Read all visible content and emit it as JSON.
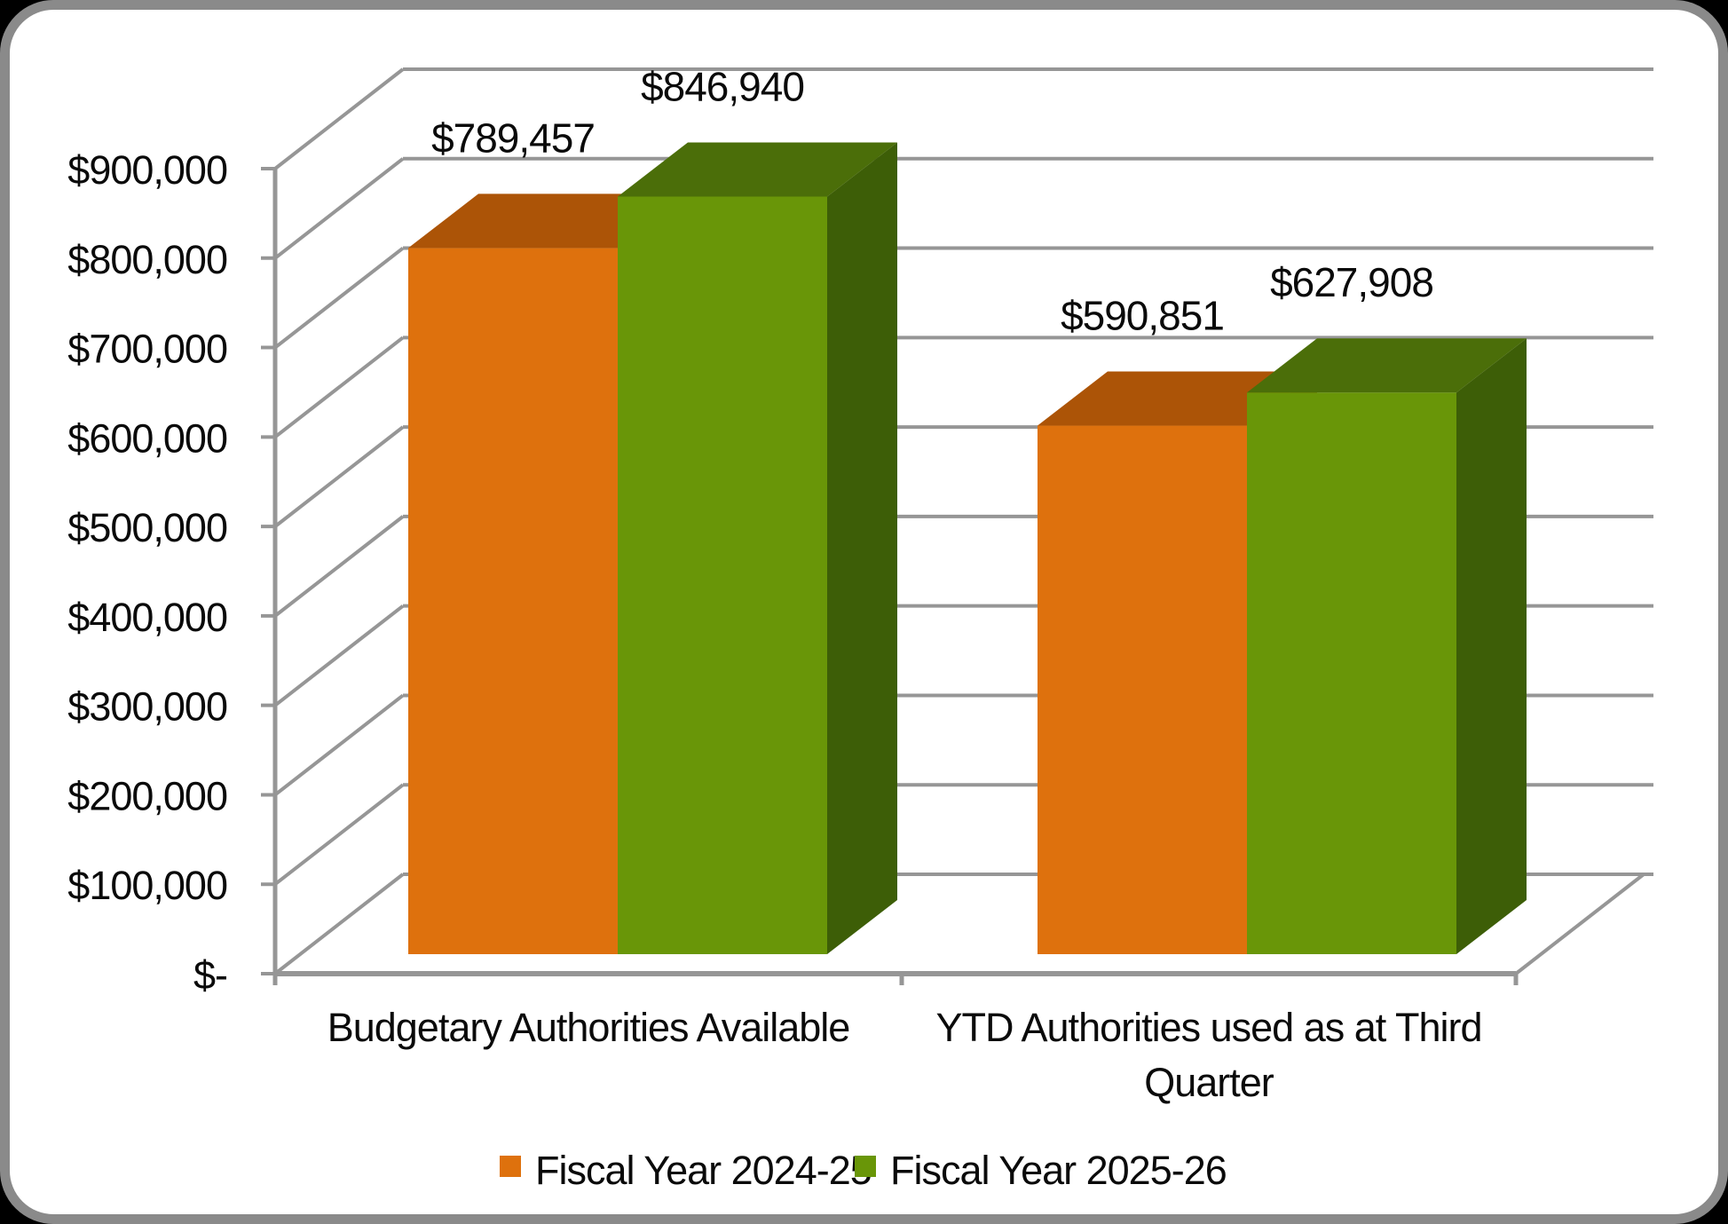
{
  "frame": {
    "background": "#000000",
    "card_background": "#ffffff",
    "border_color": "#8a8a8a"
  },
  "chart_data": {
    "type": "bar",
    "variant": "3d-clustered-column",
    "title": "",
    "categories": [
      "Budgetary Authorities Available",
      "YTD Authorities used as at Third Quarter"
    ],
    "category_display_lines": [
      [
        "Budgetary Authorities Available"
      ],
      [
        "YTD Authorities used as at Third",
        "Quarter"
      ]
    ],
    "series": [
      {
        "name": "Fiscal Year 2024-25",
        "values": [
          789457,
          590851
        ],
        "labels": [
          "$789,457",
          "$590,851"
        ],
        "color": "#de710d",
        "color_top": "#ac5407",
        "color_side": "#a04e06"
      },
      {
        "name": "Fiscal Year 2025-26",
        "values": [
          846940,
          627908
        ],
        "labels": [
          "$846,940",
          "$627,908"
        ],
        "color": "#699608",
        "color_top": "#4b6e09",
        "color_side": "#3d5e07"
      }
    ],
    "y_axis": {
      "min": 0,
      "max": 900000,
      "step": 100000,
      "tick_labels": [
        "$-",
        "$100,000",
        "$200,000",
        "$300,000",
        "$400,000",
        "$500,000",
        "$600,000",
        "$700,000",
        "$800,000",
        "$900,000"
      ]
    },
    "legend": {
      "position": "bottom",
      "entries": [
        "Fiscal Year 2024-25",
        "Fiscal Year 2025-26"
      ]
    },
    "grid": true,
    "gridline_color": "#969696",
    "axis_color": "#969696",
    "text_color": "#0a0a0a"
  }
}
